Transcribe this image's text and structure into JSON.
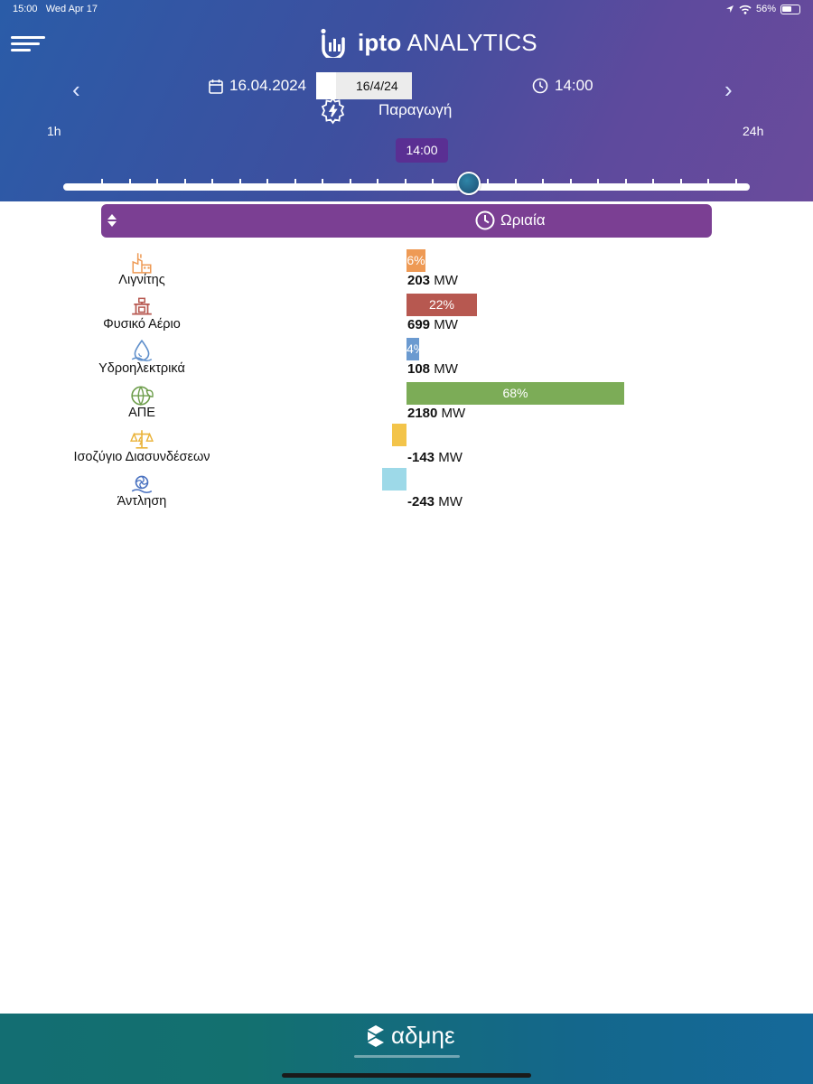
{
  "status_bar": {
    "time": "15:00",
    "date": "Wed Apr 17",
    "battery": "56%"
  },
  "app": {
    "logo_bold": "ipto",
    "logo_light": "ANALYTICS"
  },
  "controls": {
    "date_display": "16.04.2024",
    "date_picker_value": "16/4/24",
    "time_display": "14:00",
    "section_label": "Παραγωγή",
    "range_start": "1h",
    "range_end": "24h",
    "selected_time": "14:00",
    "selected_hour": 14,
    "hours_total": 24
  },
  "mode_select": {
    "label": "Ωριαία"
  },
  "unit": "MW",
  "rows": [
    {
      "label": "Λιγνίτης",
      "percent": "6%",
      "percent_value": 6,
      "value": "203",
      "color": "#ee9a55",
      "icon": "lignite-plant-icon"
    },
    {
      "label": "Φυσικό Αέριο",
      "percent": "22%",
      "percent_value": 22,
      "value": "699",
      "color": "#b75850",
      "icon": "gas-valve-icon"
    },
    {
      "label": "Υδροηλεκτρικά",
      "percent": "4%",
      "percent_value": 4,
      "value": "108",
      "color": "#6b9ad0",
      "icon": "water-drop-icon"
    },
    {
      "label": "ΑΠΕ",
      "percent": "68%",
      "percent_value": 68,
      "value": "2180",
      "color": "#7cac57",
      "icon": "eco-globe-icon"
    },
    {
      "label": "Ισοζύγιο Διασυνδέσεων",
      "percent": "",
      "value": "-143",
      "color": "#f3c44a",
      "icon": "balance-scale-icon"
    },
    {
      "label": "Άντληση",
      "percent": "",
      "value": "-243",
      "color": "#9dd9e8",
      "icon": "pump-icon"
    }
  ],
  "footer": {
    "brand": "αδμηε"
  },
  "colors": {
    "header_start": "#2a5ca8",
    "header_end": "#6a4b9c",
    "accent_purple": "#7b3f93",
    "footer": "#136e72"
  }
}
